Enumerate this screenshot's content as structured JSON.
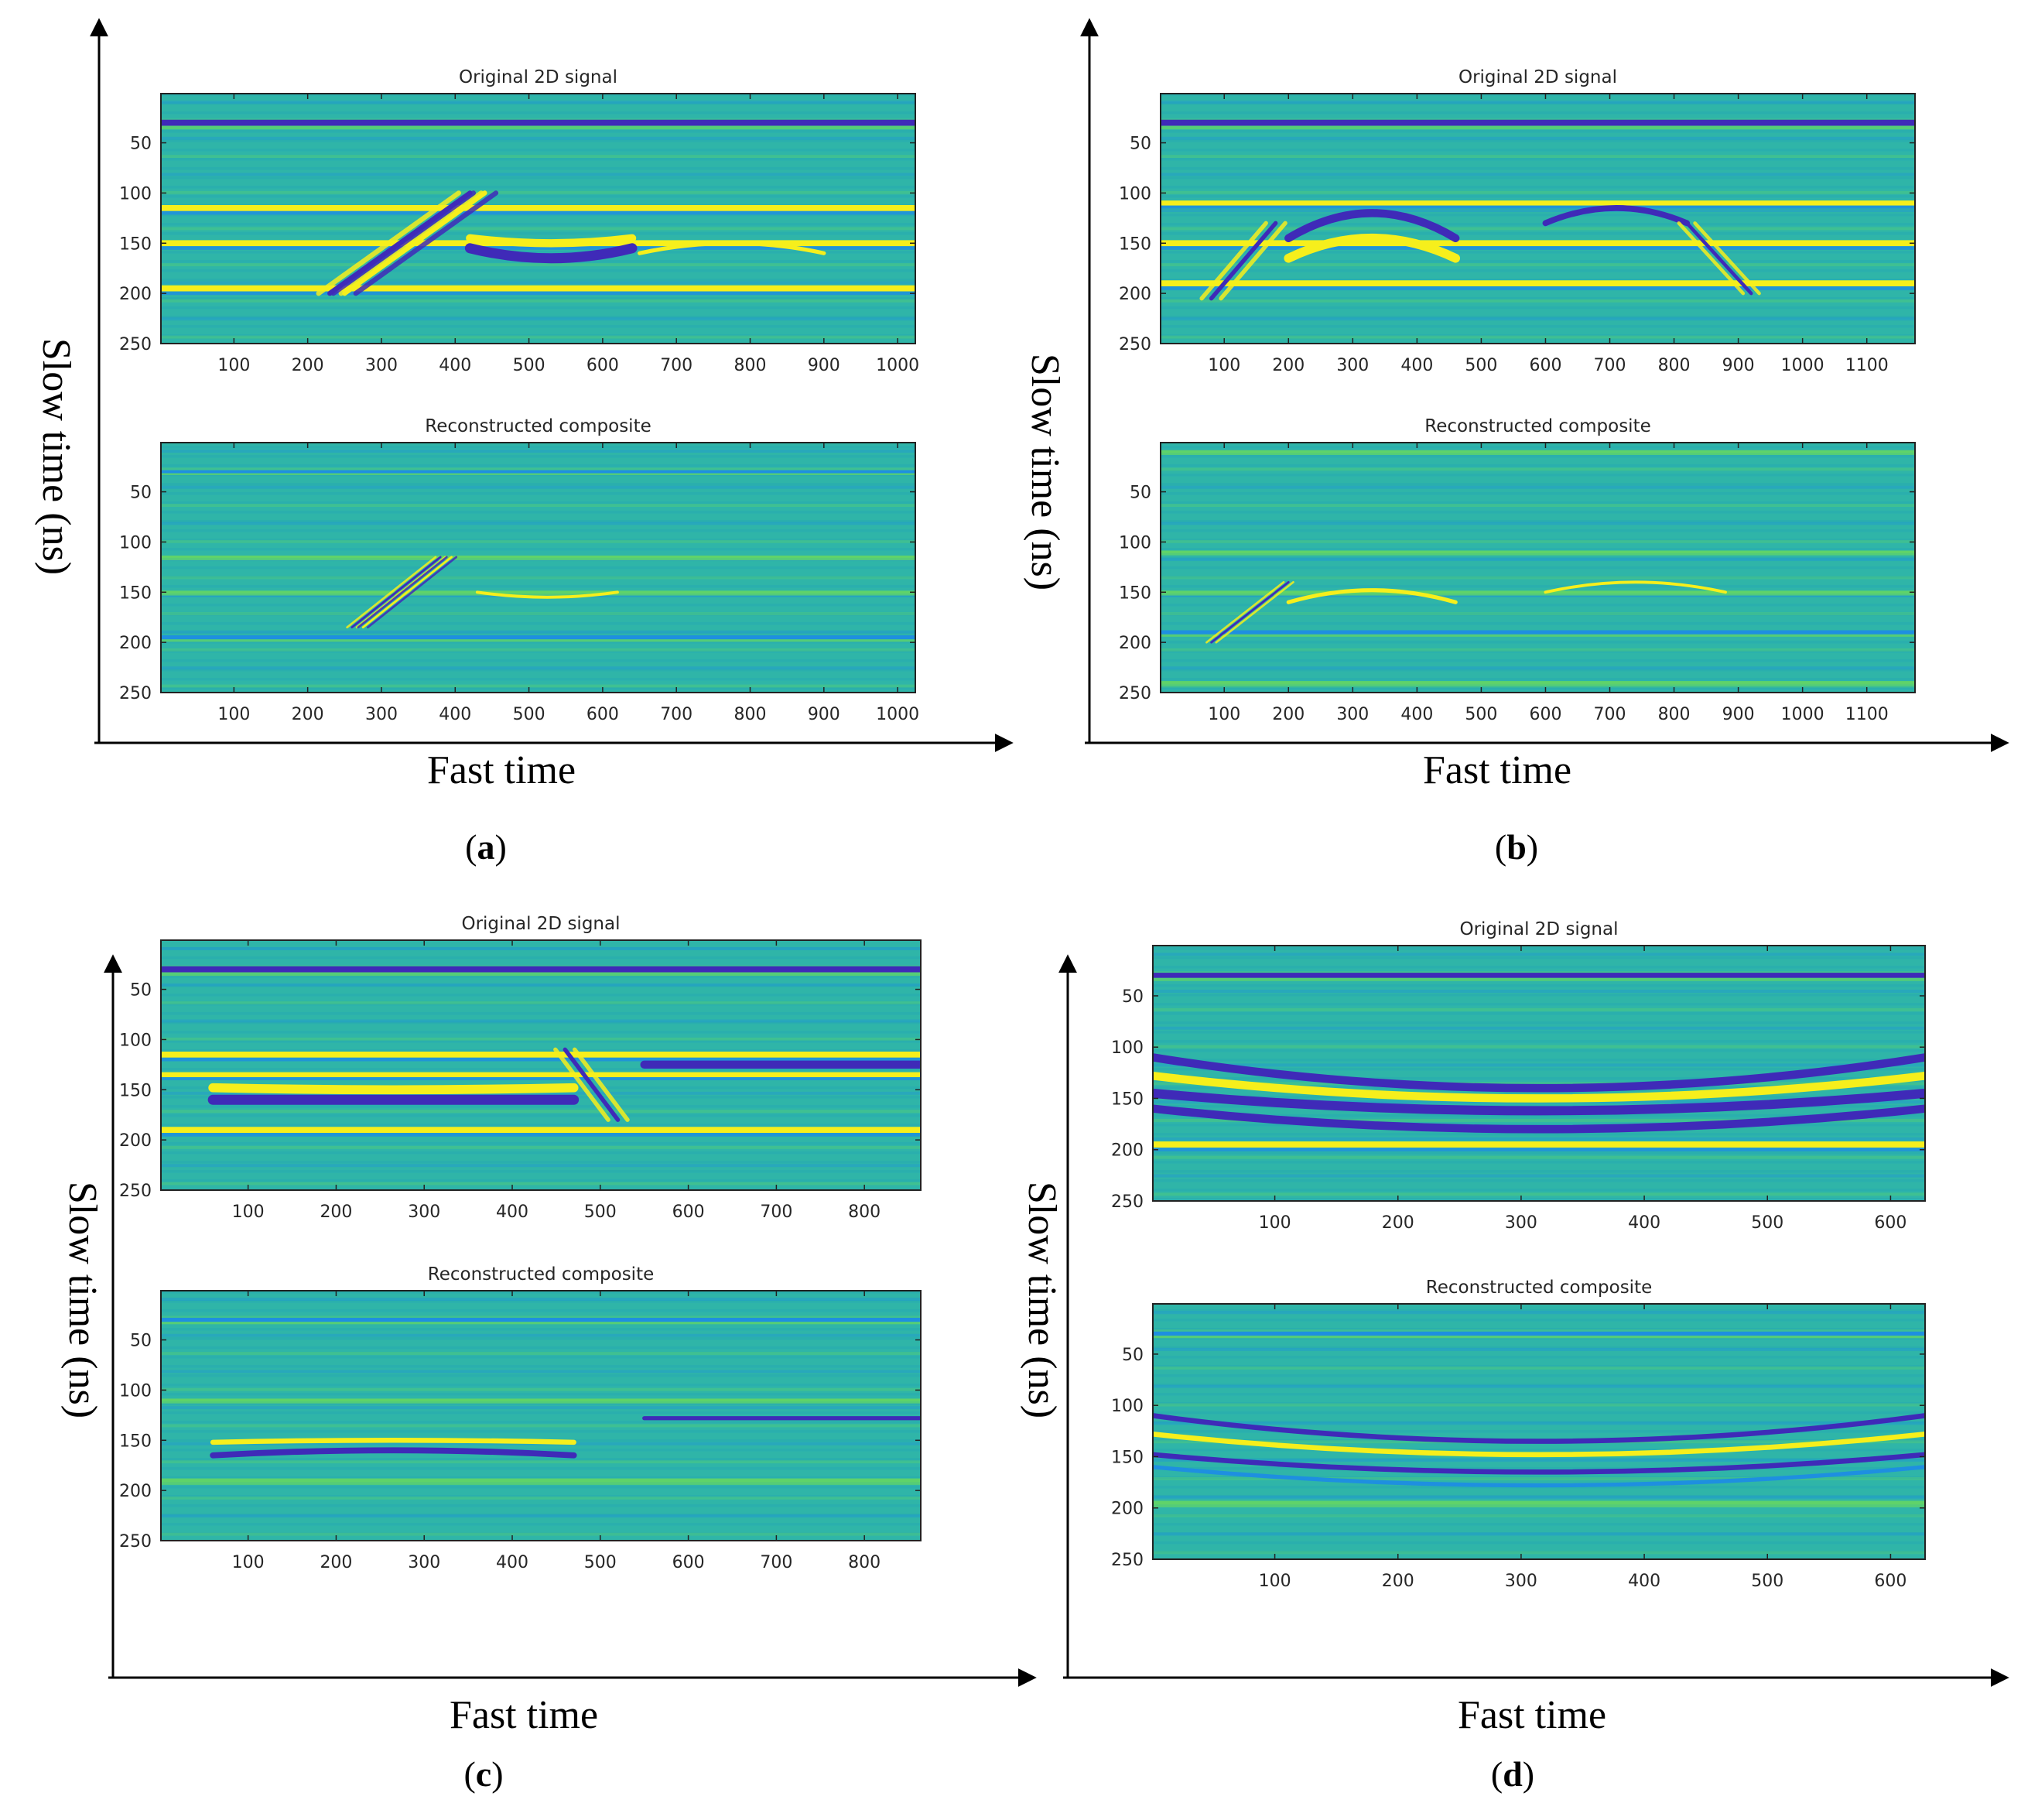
{
  "colors": {
    "background": "#2fb5a8",
    "dark_blue": "#3f2ab8",
    "blue": "#1e8fe0",
    "green": "#5fd36a",
    "yellow": "#f6ef1c",
    "frame": "#222222",
    "arrow": "#000000"
  },
  "chart_data": [
    {
      "panel": "a",
      "type": "heatmap",
      "caption_letter": "a",
      "xlabel": "Fast time",
      "ylabel": "Slow time (ns)",
      "subplots": [
        {
          "title": "Original 2D signal",
          "x_ticks": [
            100,
            200,
            300,
            400,
            500,
            600,
            700,
            800,
            900,
            1000
          ],
          "y_ticks": [
            50,
            100,
            150,
            200,
            250
          ],
          "xlim": [
            1,
            1024
          ],
          "ylim": [
            1,
            250
          ],
          "colormap": "parula",
          "horizontal_bands": [
            {
              "y": 30,
              "color": "dark_blue",
              "w": 6
            },
            {
              "y": 115,
              "color": "yellow",
              "w": 6
            },
            {
              "y": 150,
              "color": "yellow",
              "w": 6
            },
            {
              "y": 195,
              "color": "yellow",
              "w": 6
            }
          ],
          "features": [
            {
              "kind": "slant",
              "x0": 230,
              "y0": 200,
              "x1": 420,
              "y1": 100,
              "color": "dark_blue",
              "w": 7
            },
            {
              "kind": "slant",
              "x0": 250,
              "y0": 200,
              "x1": 440,
              "y1": 100,
              "color": "yellow",
              "w": 7
            },
            {
              "kind": "arc",
              "x0": 420,
              "x1": 640,
              "y_edge": 155,
              "y_mid": 165,
              "color": "dark_blue",
              "w": 10
            },
            {
              "kind": "arc",
              "x0": 420,
              "x1": 640,
              "y_edge": 145,
              "y_mid": 150,
              "color": "yellow",
              "w": 8
            },
            {
              "kind": "arc",
              "x0": 650,
              "x1": 900,
              "y_edge": 160,
              "y_mid": 150,
              "color": "yellow",
              "w": 4
            }
          ]
        },
        {
          "title": "Reconstructed composite",
          "x_ticks": [
            100,
            200,
            300,
            400,
            500,
            600,
            700,
            800,
            900,
            1000
          ],
          "y_ticks": [
            50,
            100,
            150,
            200,
            250
          ],
          "xlim": [
            1,
            1024
          ],
          "ylim": [
            1,
            250
          ],
          "colormap": "parula",
          "horizontal_bands": [
            {
              "y": 30,
              "color": "blue",
              "w": 3
            },
            {
              "y": 115,
              "color": "green",
              "w": 3
            },
            {
              "y": 150,
              "color": "green",
              "w": 3
            },
            {
              "y": 195,
              "color": "blue",
              "w": 4
            }
          ],
          "features": [
            {
              "kind": "slant",
              "x0": 260,
              "y0": 185,
              "x1": 380,
              "y1": 115,
              "color": "dark_blue",
              "w": 3
            },
            {
              "kind": "slant",
              "x0": 275,
              "y0": 185,
              "x1": 395,
              "y1": 115,
              "color": "yellow",
              "w": 3
            },
            {
              "kind": "arc",
              "x0": 430,
              "x1": 620,
              "y_edge": 150,
              "y_mid": 155,
              "color": "yellow",
              "w": 3
            }
          ]
        }
      ]
    },
    {
      "panel": "b",
      "type": "heatmap",
      "caption_letter": "b",
      "xlabel": "Fast time",
      "ylabel": "Slow time (ns)",
      "subplots": [
        {
          "title": "Original 2D signal",
          "x_ticks": [
            100,
            200,
            300,
            400,
            500,
            600,
            700,
            800,
            900,
            1000,
            1100
          ],
          "y_ticks": [
            50,
            100,
            150,
            200,
            250
          ],
          "xlim": [
            1,
            1175
          ],
          "ylim": [
            1,
            250
          ],
          "colormap": "parula",
          "horizontal_bands": [
            {
              "y": 30,
              "color": "dark_blue",
              "w": 6
            },
            {
              "y": 110,
              "color": "yellow",
              "w": 5
            },
            {
              "y": 150,
              "color": "yellow",
              "w": 6
            },
            {
              "y": 190,
              "color": "yellow",
              "w": 6
            }
          ],
          "features": [
            {
              "kind": "arc",
              "x0": 200,
              "x1": 460,
              "y_edge": 145,
              "y_mid": 120,
              "color": "dark_blue",
              "w": 8
            },
            {
              "kind": "arc",
              "x0": 200,
              "x1": 460,
              "y_edge": 165,
              "y_mid": 145,
              "color": "yellow",
              "w": 9
            },
            {
              "kind": "arc",
              "x0": 600,
              "x1": 820,
              "y_edge": 130,
              "y_mid": 115,
              "color": "dark_blue",
              "w": 6
            },
            {
              "kind": "slant",
              "x0": 80,
              "y0": 205,
              "x1": 180,
              "y1": 130,
              "color": "dark_blue",
              "w": 6
            },
            {
              "kind": "slant",
              "x0": 820,
              "y0": 130,
              "x1": 920,
              "y1": 200,
              "color": "dark_blue",
              "w": 5
            }
          ]
        },
        {
          "title": "Reconstructed composite",
          "x_ticks": [
            100,
            200,
            300,
            400,
            500,
            600,
            700,
            800,
            900,
            1000,
            1100
          ],
          "y_ticks": [
            50,
            100,
            150,
            200,
            250
          ],
          "xlim": [
            1,
            1175
          ],
          "ylim": [
            1,
            250
          ],
          "colormap": "parula",
          "horizontal_bands": [
            {
              "y": 10,
              "color": "green",
              "w": 3
            },
            {
              "y": 110,
              "color": "green",
              "w": 3
            },
            {
              "y": 150,
              "color": "green",
              "w": 3
            },
            {
              "y": 190,
              "color": "blue",
              "w": 4
            },
            {
              "y": 240,
              "color": "green",
              "w": 3
            }
          ],
          "features": [
            {
              "kind": "arc",
              "x0": 200,
              "x1": 460,
              "y_edge": 160,
              "y_mid": 148,
              "color": "yellow",
              "w": 4
            },
            {
              "kind": "slant",
              "x0": 80,
              "y0": 200,
              "x1": 200,
              "y1": 140,
              "color": "dark_blue",
              "w": 3
            },
            {
              "kind": "arc",
              "x0": 600,
              "x1": 880,
              "y_edge": 150,
              "y_mid": 140,
              "color": "yellow",
              "w": 3
            }
          ]
        }
      ]
    },
    {
      "panel": "c",
      "type": "heatmap",
      "caption_letter": "c",
      "xlabel": "Fast time",
      "ylabel": "Slow time (ns)",
      "subplots": [
        {
          "title": "Original 2D signal",
          "x_ticks": [
            100,
            200,
            300,
            400,
            500,
            600,
            700,
            800
          ],
          "y_ticks": [
            50,
            100,
            150,
            200,
            250
          ],
          "xlim": [
            1,
            864
          ],
          "ylim": [
            1,
            250
          ],
          "colormap": "parula",
          "horizontal_bands": [
            {
              "y": 30,
              "color": "dark_blue",
              "w": 6
            },
            {
              "y": 115,
              "color": "yellow",
              "w": 6
            },
            {
              "y": 135,
              "color": "yellow",
              "w": 5
            },
            {
              "y": 190,
              "color": "yellow",
              "w": 6
            }
          ],
          "features": [
            {
              "kind": "arc",
              "x0": 60,
              "x1": 470,
              "y_edge": 160,
              "y_mid": 160,
              "color": "dark_blue",
              "w": 10
            },
            {
              "kind": "arc",
              "x0": 60,
              "x1": 470,
              "y_edge": 148,
              "y_mid": 150,
              "color": "yellow",
              "w": 9
            },
            {
              "kind": "arc",
              "x0": 550,
              "x1": 864,
              "y_edge": 125,
              "y_mid": 125,
              "color": "dark_blue",
              "w": 8
            },
            {
              "kind": "slant",
              "x0": 460,
              "y0": 110,
              "x1": 520,
              "y1": 180,
              "color": "dark_blue",
              "w": 6
            }
          ]
        },
        {
          "title": "Reconstructed composite",
          "x_ticks": [
            100,
            200,
            300,
            400,
            500,
            600,
            700,
            800
          ],
          "y_ticks": [
            50,
            100,
            150,
            200,
            250
          ],
          "xlim": [
            1,
            864
          ],
          "ylim": [
            1,
            250
          ],
          "colormap": "parula",
          "horizontal_bands": [
            {
              "y": 30,
              "color": "blue",
              "w": 4
            },
            {
              "y": 110,
              "color": "green",
              "w": 3
            },
            {
              "y": 190,
              "color": "green",
              "w": 4
            }
          ],
          "features": [
            {
              "kind": "arc",
              "x0": 60,
              "x1": 470,
              "y_edge": 165,
              "y_mid": 160,
              "color": "dark_blue",
              "w": 6
            },
            {
              "kind": "arc",
              "x0": 60,
              "x1": 470,
              "y_edge": 152,
              "y_mid": 150,
              "color": "yellow",
              "w": 5
            },
            {
              "kind": "arc",
              "x0": 550,
              "x1": 864,
              "y_edge": 128,
              "y_mid": 128,
              "color": "dark_blue",
              "w": 4
            }
          ]
        }
      ]
    },
    {
      "panel": "d",
      "type": "heatmap",
      "caption_letter": "d",
      "xlabel": "Fast time",
      "ylabel": "Slow time (ns)",
      "subplots": [
        {
          "title": "Original 2D signal",
          "x_ticks": [
            100,
            200,
            300,
            400,
            500,
            600
          ],
          "y_ticks": [
            50,
            100,
            150,
            200,
            250
          ],
          "xlim": [
            1,
            628
          ],
          "ylim": [
            1,
            250
          ],
          "colormap": "parula",
          "horizontal_bands": [
            {
              "y": 30,
              "color": "dark_blue",
              "w": 5
            },
            {
              "y": 195,
              "color": "yellow",
              "w": 6
            }
          ],
          "features": [
            {
              "kind": "sag",
              "x0": 1,
              "x1": 628,
              "y_edge": 110,
              "y_mid": 140,
              "color": "dark_blue",
              "w": 8
            },
            {
              "kind": "sag",
              "x0": 1,
              "x1": 628,
              "y_edge": 128,
              "y_mid": 150,
              "color": "yellow",
              "w": 8
            },
            {
              "kind": "sag",
              "x0": 1,
              "x1": 628,
              "y_edge": 145,
              "y_mid": 162,
              "color": "dark_blue",
              "w": 9
            },
            {
              "kind": "sag",
              "x0": 1,
              "x1": 628,
              "y_edge": 160,
              "y_mid": 180,
              "color": "dark_blue",
              "w": 8
            }
          ]
        },
        {
          "title": "Reconstructed composite",
          "x_ticks": [
            100,
            200,
            300,
            400,
            500,
            600
          ],
          "y_ticks": [
            50,
            100,
            150,
            200,
            250
          ],
          "xlim": [
            1,
            628
          ],
          "ylim": [
            1,
            250
          ],
          "colormap": "parula",
          "horizontal_bands": [
            {
              "y": 30,
              "color": "blue",
              "w": 4
            },
            {
              "y": 195,
              "color": "green",
              "w": 4
            }
          ],
          "features": [
            {
              "kind": "sag",
              "x0": 1,
              "x1": 628,
              "y_edge": 110,
              "y_mid": 135,
              "color": "dark_blue",
              "w": 5
            },
            {
              "kind": "sag",
              "x0": 1,
              "x1": 628,
              "y_edge": 128,
              "y_mid": 148,
              "color": "yellow",
              "w": 5
            },
            {
              "kind": "sag",
              "x0": 1,
              "x1": 628,
              "y_edge": 148,
              "y_mid": 165,
              "color": "dark_blue",
              "w": 5
            },
            {
              "kind": "sag",
              "x0": 1,
              "x1": 628,
              "y_edge": 160,
              "y_mid": 178,
              "color": "blue",
              "w": 4
            }
          ]
        }
      ]
    }
  ]
}
